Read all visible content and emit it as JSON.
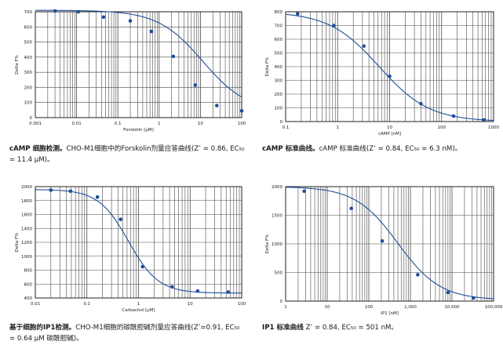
{
  "chart_data": [
    {
      "type": "line",
      "xscale": "log",
      "xlim": [
        0.001,
        100
      ],
      "ylim": [
        0,
        700
      ],
      "xticks": [
        "0.001",
        "0.01",
        "0.1",
        "1",
        "10",
        "100"
      ],
      "yticks": [
        "0",
        "100",
        "200",
        "300",
        "400",
        "500",
        "600",
        "700"
      ],
      "xlabel": "Forskolin [µM]",
      "ylabel": "Delta F%",
      "grid": true,
      "points": {
        "x": [
          0.003,
          0.011,
          0.045,
          0.2,
          0.65,
          2.2,
          7.5,
          25,
          100
        ],
        "y": [
          705,
          700,
          665,
          640,
          570,
          405,
          215,
          80,
          45
        ]
      },
      "curve": {
        "top": 710,
        "bottom": 35,
        "ec50": 11.4,
        "hill": 0.8
      },
      "caption": {
        "bold": "cAMP 细胞检测。",
        "text": "CHO-M1细胞中的Forskolin剂量应答曲线(Z’ = 0.86, EC₅₀ = 11.4 µM)。"
      }
    },
    {
      "type": "line",
      "xscale": "log",
      "xlim": [
        0.1,
        1000
      ],
      "ylim": [
        0,
        800
      ],
      "xticks": [
        "0.1",
        "1",
        "10",
        "100",
        "1000"
      ],
      "yticks": [
        "0",
        "100",
        "200",
        "300",
        "400",
        "500",
        "600",
        "700",
        "800"
      ],
      "xlabel": "cAMP [nM]",
      "ylabel": "Delta F%",
      "grid": true,
      "points": {
        "x": [
          0.17,
          0.85,
          3.2,
          10,
          40,
          170,
          650
        ],
        "y": [
          785,
          700,
          550,
          330,
          130,
          40,
          12
        ]
      },
      "curve": {
        "top": 800,
        "bottom": 0,
        "ec50": 6.3,
        "hill": 0.9
      },
      "caption": {
        "bold": "cAMP 标准曲线。",
        "text": "cAMP 标准曲线(Z’ = 0.84, EC₅₀ = 6.3 nM)。"
      }
    },
    {
      "type": "line",
      "xscale": "log",
      "xlim": [
        0.01,
        100
      ],
      "ylim": [
        400,
        2000
      ],
      "xticks": [
        "0.01",
        "0.1",
        "1",
        "10",
        "100"
      ],
      "yticks": [
        "400",
        "600",
        "800",
        "1000",
        "1200",
        "1400",
        "1600",
        "1800",
        "2000"
      ],
      "xlabel": "Carbachol [µM]",
      "ylabel": "Delta F%",
      "grid": true,
      "points": {
        "x": [
          0.02,
          0.048,
          0.16,
          0.45,
          1.2,
          4.5,
          14,
          55
        ],
        "y": [
          1950,
          1935,
          1850,
          1530,
          850,
          560,
          500,
          485
        ]
      },
      "curve": {
        "top": 1960,
        "bottom": 470,
        "ec50": 0.64,
        "hill": 1.5
      },
      "caption": {
        "bold": "基于细胞的IP1检测。",
        "text": "CHO-M1细胞的碳酰胆碱剂量应答曲线(Z’=0.91, EC₅₀ = 0.64 µM 碳酰胆碱)。"
      }
    },
    {
      "type": "line",
      "xscale": "log",
      "xlim": [
        1,
        100000
      ],
      "ylim": [
        0,
        2000
      ],
      "xticks": [
        "1",
        "10",
        "100",
        "1,000",
        "10,000",
        "100,000"
      ],
      "yticks": [
        "0",
        "500",
        "1000",
        "1500",
        "2000"
      ],
      "xlabel": "IP1 [nM]",
      "ylabel": "Delta F%",
      "grid": true,
      "points": {
        "x": [
          2.8,
          38,
          210,
          1500,
          8000,
          33000
        ],
        "y": [
          1920,
          1620,
          1050,
          460,
          150,
          55
        ]
      },
      "curve": {
        "top": 2000,
        "bottom": 20,
        "ec50": 501,
        "hill": 0.85
      },
      "caption": {
        "bold": "IP1 标准曲线",
        "text": " Z’ = 0.84, EC₅₀ = 501 nM。"
      }
    }
  ],
  "colors": {
    "curve": "#1f4e9c",
    "point": "#1f4e9c",
    "grid": "#4a4a4a",
    "axis": "#222222",
    "text": "#1a1a1a"
  }
}
